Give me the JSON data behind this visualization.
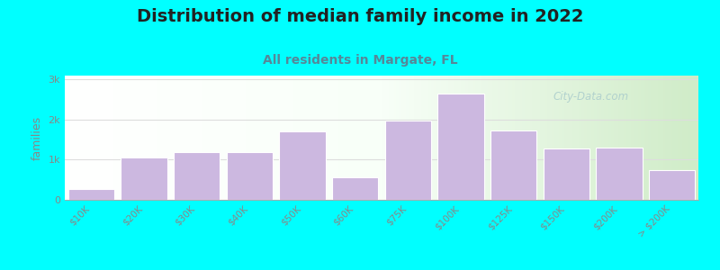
{
  "title": "Distribution of median family income in 2022",
  "subtitle": "All residents in Margate, FL",
  "ylabel": "families",
  "categories": [
    "$10K",
    "$20K",
    "$30K",
    "$40K",
    "$50K",
    "$60K",
    "$75K",
    "$100K",
    "$125K",
    "$150K",
    "$200K",
    "> $200K"
  ],
  "values": [
    280,
    1060,
    1200,
    1180,
    1700,
    560,
    1970,
    2640,
    1720,
    1280,
    1300,
    750
  ],
  "bar_color": "#ccb8e0",
  "bar_edgecolor": "#ffffff",
  "background_color": "#00ffff",
  "plot_bg_left": "#d8f0d0",
  "plot_bg_right": "#ffffff",
  "grid_color": "#dddddd",
  "title_fontsize": 14,
  "subtitle_fontsize": 10,
  "subtitle_color": "#558899",
  "ylabel_color": "#888888",
  "tick_color": "#888888",
  "yticks": [
    0,
    1000,
    2000,
    3000
  ],
  "ytick_labels": [
    "0",
    "1k",
    "2k",
    "3k"
  ],
  "ylim": [
    0,
    3100
  ],
  "watermark": "City-Data.com"
}
